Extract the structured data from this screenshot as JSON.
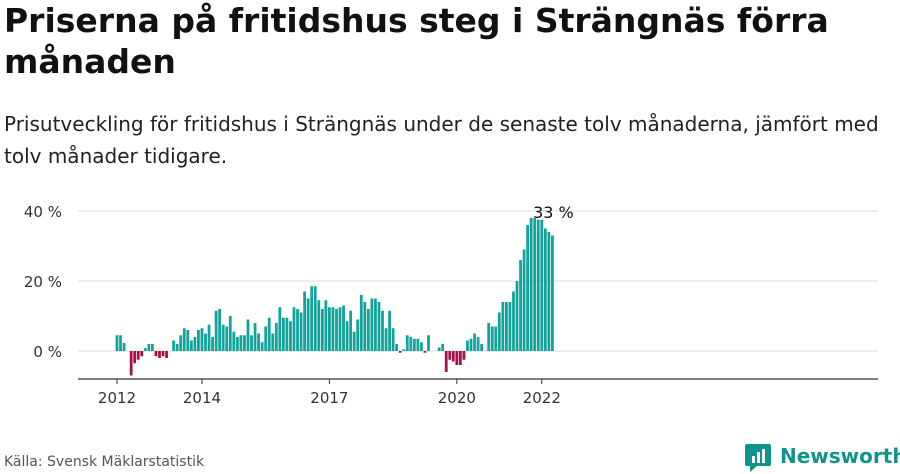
{
  "title": "Priserna på fritidshus steg i Strängnäs förra månaden",
  "subtitle": "Prisutveckling för fritidshus i Strängnäs under de senaste tolv månaderna, jämfört med tolv månader tidigare.",
  "source": "Källa: Svensk Mäklarstatistik",
  "brand": {
    "name": "Newsworthy",
    "icon": "newsworthy-logo-icon",
    "color": "#10938b"
  },
  "colors": {
    "positive": "#14a39a",
    "negative": "#a4114d",
    "grid": "#dddddd",
    "axis": "#333333"
  },
  "chart_data": {
    "type": "bar",
    "ylabel": "",
    "xlabel": "",
    "ylim": [
      -8,
      42
    ],
    "y_ticks": [
      0,
      20,
      40
    ],
    "y_tick_labels": [
      "0 %",
      "20 %",
      "40 %"
    ],
    "x_tick_labels": [
      "2012",
      "2014",
      "2017",
      "2020",
      "2022"
    ],
    "x_tick_positions": [
      "2012-01",
      "2014-01",
      "2017-01",
      "2020-01",
      "2022-01"
    ],
    "grid": true,
    "annotation": {
      "text": "33 %",
      "at": "2022-04"
    },
    "x": [
      "2012-01",
      "2012-02",
      "2012-03",
      "2012-04",
      "2012-05",
      "2012-06",
      "2012-07",
      "2012-08",
      "2012-09",
      "2012-10",
      "2012-11",
      "2012-12",
      "2013-01",
      "2013-02",
      "2013-03",
      "2013-04",
      "2013-05",
      "2013-06",
      "2013-07",
      "2013-08",
      "2013-09",
      "2013-10",
      "2013-11",
      "2013-12",
      "2014-01",
      "2014-02",
      "2014-03",
      "2014-04",
      "2014-05",
      "2014-06",
      "2014-07",
      "2014-08",
      "2014-09",
      "2014-10",
      "2014-11",
      "2014-12",
      "2015-01",
      "2015-02",
      "2015-03",
      "2015-04",
      "2015-05",
      "2015-06",
      "2015-07",
      "2015-08",
      "2015-09",
      "2015-10",
      "2015-11",
      "2015-12",
      "2016-01",
      "2016-02",
      "2016-03",
      "2016-04",
      "2016-05",
      "2016-06",
      "2016-07",
      "2016-08",
      "2016-09",
      "2016-10",
      "2016-11",
      "2016-12",
      "2017-01",
      "2017-02",
      "2017-03",
      "2017-04",
      "2017-05",
      "2017-06",
      "2017-07",
      "2017-08",
      "2017-09",
      "2017-10",
      "2017-11",
      "2017-12",
      "2018-01",
      "2018-02",
      "2018-03",
      "2018-04",
      "2018-05",
      "2018-06",
      "2018-07",
      "2018-08",
      "2018-09",
      "2018-10",
      "2018-11",
      "2018-12",
      "2019-01",
      "2019-02",
      "2019-03",
      "2019-04",
      "2019-05",
      "2019-06",
      "2019-07",
      "2019-08",
      "2019-09",
      "2019-10",
      "2019-11",
      "2019-12",
      "2020-01",
      "2020-02",
      "2020-03",
      "2020-04",
      "2020-05",
      "2020-06",
      "2020-07",
      "2020-08",
      "2020-09",
      "2020-10",
      "2020-11",
      "2020-12",
      "2021-01",
      "2021-02",
      "2021-03",
      "2021-04",
      "2021-05",
      "2021-06",
      "2021-07",
      "2021-08",
      "2021-09",
      "2021-10",
      "2021-11",
      "2021-12",
      "2022-01",
      "2022-02",
      "2022-03",
      "2022-04"
    ],
    "values": [
      4.5,
      4.5,
      2.3,
      0,
      -7.0,
      -3.5,
      -2.5,
      -1.5,
      0.8,
      2.0,
      2.0,
      -1.5,
      -2.0,
      -1.5,
      -2.0,
      0,
      3.0,
      2.0,
      4.5,
      6.5,
      6.0,
      3.0,
      4.0,
      6.0,
      6.5,
      5.0,
      7.5,
      4.0,
      11.5,
      12.0,
      7.5,
      7.0,
      10.0,
      5.5,
      4.0,
      4.5,
      4.5,
      9.0,
      4.5,
      8.0,
      5.0,
      2.5,
      7.0,
      9.5,
      5.0,
      8.0,
      12.5,
      9.5,
      9.5,
      8.5,
      12.5,
      12.0,
      11.0,
      17.0,
      15.0,
      18.5,
      18.5,
      14.5,
      12.0,
      14.5,
      12.5,
      12.5,
      12.0,
      12.5,
      13.0,
      8.5,
      11.5,
      5.5,
      9.0,
      16.0,
      14.0,
      12.0,
      15.0,
      15.0,
      14.0,
      11.5,
      6.5,
      11.5,
      6.5,
      2.0,
      -0.5,
      0.5,
      4.5,
      4.0,
      3.5,
      3.5,
      2.5,
      -0.5,
      4.5,
      0,
      0,
      1.0,
      2.0,
      -6.0,
      -2.5,
      -3.0,
      -4.0,
      -4.0,
      -2.5,
      3.0,
      3.5,
      5.0,
      4.0,
      2.0,
      0,
      8.0,
      7.0,
      7.0,
      11.0,
      14.0,
      14.0,
      14.0,
      17.0,
      20.0,
      26.0,
      29.0,
      36.0,
      38.0,
      38.0,
      37.5,
      37.5,
      35.0,
      34.0,
      33.0
    ]
  }
}
